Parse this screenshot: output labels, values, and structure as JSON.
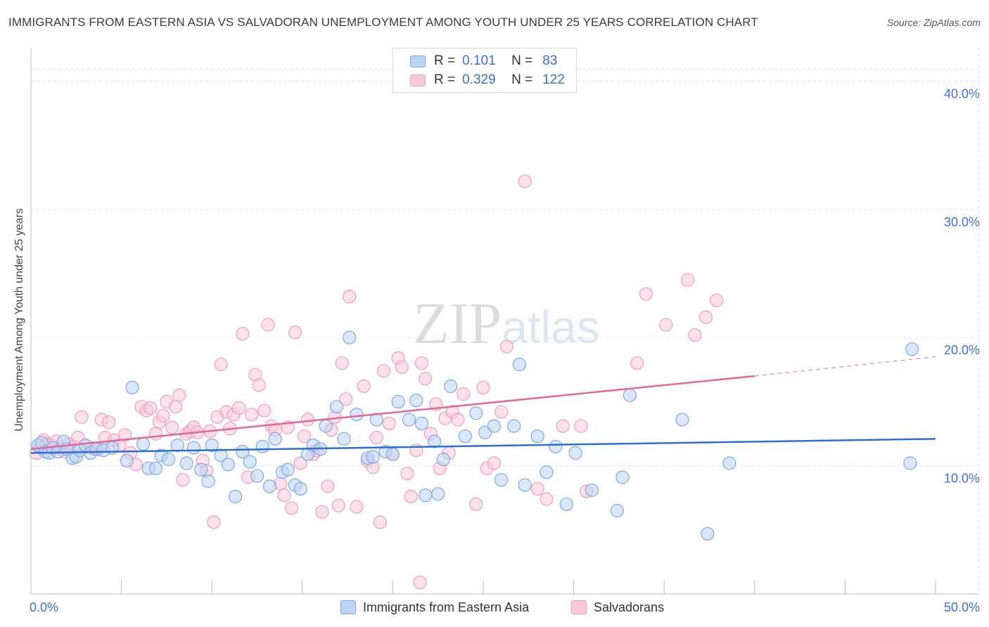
{
  "title": "IMMIGRANTS FROM EASTERN ASIA VS SALVADORAN UNEMPLOYMENT AMONG YOUTH UNDER 25 YEARS CORRELATION CHART",
  "source": "Source: ZipAtlas.com",
  "watermark": "ZIPatlas",
  "stats": [
    {
      "r_label": "R =",
      "r_value": "0.101",
      "n_label": "N =",
      "n_value": "83"
    },
    {
      "r_label": "R =",
      "r_value": "0.329",
      "n_label": "N =",
      "n_value": "122"
    }
  ],
  "legend": [
    {
      "label": "Immigrants from Eastern Asia"
    },
    {
      "label": "Salvadorans"
    }
  ],
  "colors": {
    "blue_fill": "#bcd3f3",
    "blue_stroke": "#7fa8e6",
    "blue_line": "#2e6fce",
    "pink_fill": "#f9c9d8",
    "pink_stroke": "#ee9fba",
    "pink_line": "#e0699a",
    "tick_text": "#3f6fcf"
  },
  "chart_data": {
    "type": "scatter",
    "title": "IMMIGRANTS FROM EASTERN ASIA VS SALVADORAN UNEMPLOYMENT AMONG YOUTH UNDER 25 YEARS CORRELATION CHART",
    "xlabel": "",
    "ylabel": "Unemployment Among Youth under 25 years",
    "xlim": [
      0,
      50
    ],
    "ylim": [
      0,
      42
    ],
    "x_tick_labels": [
      {
        "value": 0,
        "label": "0.0%"
      },
      {
        "value": 50,
        "label": "50.0%"
      }
    ],
    "y_ticks": [
      {
        "value": 10,
        "label": "10.0%"
      },
      {
        "value": 20,
        "label": "20.0%"
      },
      {
        "value": 30,
        "label": "30.0%"
      },
      {
        "value": 40,
        "label": "40.0%"
      }
    ],
    "grid": true,
    "legend_position": "bottom",
    "series": [
      {
        "name": "Immigrants from Eastern Asia",
        "color": "blue",
        "trend": [
          [
            0,
            11.0
          ],
          [
            50,
            12.1
          ]
        ],
        "points": [
          [
            0.4,
            11.6
          ],
          [
            0.6,
            11.8
          ],
          [
            0.8,
            11.1
          ],
          [
            1.0,
            11.0
          ],
          [
            1.2,
            11.4
          ],
          [
            1.5,
            11.1
          ],
          [
            1.8,
            11.9
          ],
          [
            2.0,
            11.3
          ],
          [
            2.3,
            10.6
          ],
          [
            2.5,
            10.7
          ],
          [
            2.7,
            11.2
          ],
          [
            3.0,
            11.6
          ],
          [
            3.3,
            11.0
          ],
          [
            3.6,
            11.3
          ],
          [
            4.0,
            11.2
          ],
          [
            4.5,
            11.4
          ],
          [
            5.3,
            10.4
          ],
          [
            5.6,
            16.1
          ],
          [
            6.2,
            11.7
          ],
          [
            6.5,
            9.8
          ],
          [
            6.9,
            9.8
          ],
          [
            7.2,
            10.8
          ],
          [
            7.6,
            10.5
          ],
          [
            8.1,
            11.6
          ],
          [
            8.6,
            10.2
          ],
          [
            9.0,
            11.4
          ],
          [
            9.4,
            9.7
          ],
          [
            9.8,
            8.8
          ],
          [
            10.0,
            11.6
          ],
          [
            10.5,
            10.8
          ],
          [
            10.9,
            10.1
          ],
          [
            11.3,
            7.6
          ],
          [
            11.7,
            11.1
          ],
          [
            12.1,
            10.3
          ],
          [
            12.5,
            9.2
          ],
          [
            12.8,
            11.5
          ],
          [
            13.2,
            8.4
          ],
          [
            13.5,
            12.1
          ],
          [
            13.9,
            9.5
          ],
          [
            14.2,
            9.7
          ],
          [
            14.6,
            8.5
          ],
          [
            14.9,
            8.2
          ],
          [
            15.3,
            10.9
          ],
          [
            15.6,
            11.6
          ],
          [
            16.0,
            11.3
          ],
          [
            16.3,
            13.1
          ],
          [
            16.9,
            14.6
          ],
          [
            17.3,
            12.1
          ],
          [
            17.6,
            20.0
          ],
          [
            18.0,
            14.0
          ],
          [
            18.6,
            10.6
          ],
          [
            18.9,
            10.7
          ],
          [
            19.1,
            13.6
          ],
          [
            19.6,
            11.1
          ],
          [
            20.0,
            10.9
          ],
          [
            20.3,
            15.0
          ],
          [
            20.9,
            13.6
          ],
          [
            21.3,
            15.1
          ],
          [
            21.6,
            13.3
          ],
          [
            21.8,
            7.7
          ],
          [
            22.3,
            11.9
          ],
          [
            22.5,
            7.8
          ],
          [
            22.8,
            10.5
          ],
          [
            23.2,
            16.2
          ],
          [
            24.0,
            12.3
          ],
          [
            24.6,
            14.1
          ],
          [
            25.1,
            12.6
          ],
          [
            25.6,
            13.1
          ],
          [
            26.0,
            8.9
          ],
          [
            26.7,
            13.1
          ],
          [
            27.0,
            17.9
          ],
          [
            27.3,
            8.5
          ],
          [
            28.0,
            12.3
          ],
          [
            28.5,
            9.5
          ],
          [
            29.0,
            11.5
          ],
          [
            29.6,
            7.0
          ],
          [
            30.1,
            11.0
          ],
          [
            31.0,
            8.1
          ],
          [
            32.4,
            6.5
          ],
          [
            32.7,
            9.1
          ],
          [
            33.1,
            15.5
          ],
          [
            36.0,
            13.6
          ],
          [
            37.4,
            4.7
          ],
          [
            38.6,
            10.2
          ],
          [
            48.6,
            10.2
          ],
          [
            48.7,
            19.1
          ]
        ]
      },
      {
        "name": "Salvadorans",
        "color": "pink",
        "trend": [
          [
            0,
            11.3
          ],
          [
            40,
            17.0
          ]
        ],
        "trend_dashed": [
          [
            40,
            17.0
          ],
          [
            50,
            18.5
          ]
        ],
        "points": [
          [
            0.3,
            11.0
          ],
          [
            0.5,
            11.4
          ],
          [
            0.7,
            12.0
          ],
          [
            0.9,
            11.7
          ],
          [
            1.1,
            11.6
          ],
          [
            1.4,
            11.9
          ],
          [
            1.6,
            11.3
          ],
          [
            1.9,
            11.1
          ],
          [
            2.1,
            11.7
          ],
          [
            2.4,
            11.5
          ],
          [
            2.6,
            12.2
          ],
          [
            2.8,
            13.8
          ],
          [
            3.1,
            11.5
          ],
          [
            3.4,
            11.4
          ],
          [
            3.7,
            11.3
          ],
          [
            3.9,
            13.6
          ],
          [
            4.1,
            12.2
          ],
          [
            4.3,
            13.4
          ],
          [
            4.6,
            12.0
          ],
          [
            4.9,
            11.6
          ],
          [
            5.2,
            12.4
          ],
          [
            5.5,
            11.0
          ],
          [
            5.8,
            10.1
          ],
          [
            6.1,
            14.6
          ],
          [
            6.4,
            14.3
          ],
          [
            6.6,
            14.5
          ],
          [
            6.9,
            12.5
          ],
          [
            7.1,
            13.4
          ],
          [
            7.3,
            13.9
          ],
          [
            7.5,
            15.0
          ],
          [
            7.8,
            13.0
          ],
          [
            8.0,
            14.6
          ],
          [
            8.2,
            15.5
          ],
          [
            8.4,
            8.9
          ],
          [
            8.6,
            12.5
          ],
          [
            8.8,
            12.7
          ],
          [
            9.0,
            13.0
          ],
          [
            9.2,
            12.6
          ],
          [
            9.5,
            10.4
          ],
          [
            9.7,
            9.6
          ],
          [
            9.9,
            12.7
          ],
          [
            10.1,
            5.6
          ],
          [
            10.3,
            13.8
          ],
          [
            10.5,
            17.9
          ],
          [
            10.8,
            14.2
          ],
          [
            11.0,
            12.9
          ],
          [
            11.2,
            14.0
          ],
          [
            11.5,
            14.5
          ],
          [
            11.7,
            20.3
          ],
          [
            12.0,
            9.1
          ],
          [
            12.2,
            14.0
          ],
          [
            12.4,
            17.1
          ],
          [
            12.6,
            16.3
          ],
          [
            12.9,
            14.3
          ],
          [
            13.1,
            21.0
          ],
          [
            13.3,
            13.1
          ],
          [
            13.5,
            12.8
          ],
          [
            13.8,
            8.6
          ],
          [
            14.0,
            7.7
          ],
          [
            14.2,
            13.0
          ],
          [
            14.4,
            6.7
          ],
          [
            14.6,
            20.4
          ],
          [
            14.9,
            10.2
          ],
          [
            15.1,
            12.3
          ],
          [
            15.3,
            13.6
          ],
          [
            15.6,
            10.9
          ],
          [
            15.8,
            11.2
          ],
          [
            16.1,
            6.4
          ],
          [
            16.4,
            8.4
          ],
          [
            16.6,
            12.8
          ],
          [
            16.8,
            13.8
          ],
          [
            17.0,
            6.9
          ],
          [
            17.2,
            18.0
          ],
          [
            17.4,
            15.2
          ],
          [
            17.6,
            23.2
          ],
          [
            18.0,
            6.8
          ],
          [
            18.4,
            16.2
          ],
          [
            18.6,
            10.4
          ],
          [
            18.9,
            9.9
          ],
          [
            19.1,
            12.2
          ],
          [
            19.3,
            5.6
          ],
          [
            19.5,
            17.4
          ],
          [
            19.8,
            13.3
          ],
          [
            20.0,
            10.9
          ],
          [
            20.3,
            18.4
          ],
          [
            20.5,
            17.7
          ],
          [
            20.8,
            9.4
          ],
          [
            21.0,
            7.6
          ],
          [
            21.3,
            11.2
          ],
          [
            21.6,
            18.0
          ],
          [
            21.8,
            16.8
          ],
          [
            22.1,
            12.5
          ],
          [
            22.4,
            14.8
          ],
          [
            22.6,
            9.8
          ],
          [
            22.9,
            13.7
          ],
          [
            23.1,
            11.0
          ],
          [
            23.3,
            14.2
          ],
          [
            23.6,
            13.6
          ],
          [
            23.9,
            15.6
          ],
          [
            24.6,
            7.0
          ],
          [
            25.0,
            16.1
          ],
          [
            25.2,
            9.8
          ],
          [
            25.6,
            10.2
          ],
          [
            26.0,
            14.2
          ],
          [
            26.3,
            19.3
          ],
          [
            27.3,
            32.2
          ],
          [
            28.0,
            8.2
          ],
          [
            28.5,
            7.4
          ],
          [
            29.4,
            13.1
          ],
          [
            30.4,
            13.1
          ],
          [
            30.7,
            8.0
          ],
          [
            33.5,
            18.0
          ],
          [
            34.0,
            23.4
          ],
          [
            35.1,
            21.0
          ],
          [
            36.3,
            24.5
          ],
          [
            36.7,
            20.2
          ],
          [
            37.3,
            21.6
          ],
          [
            37.9,
            22.9
          ],
          [
            21.5,
            0.9
          ]
        ]
      }
    ]
  }
}
